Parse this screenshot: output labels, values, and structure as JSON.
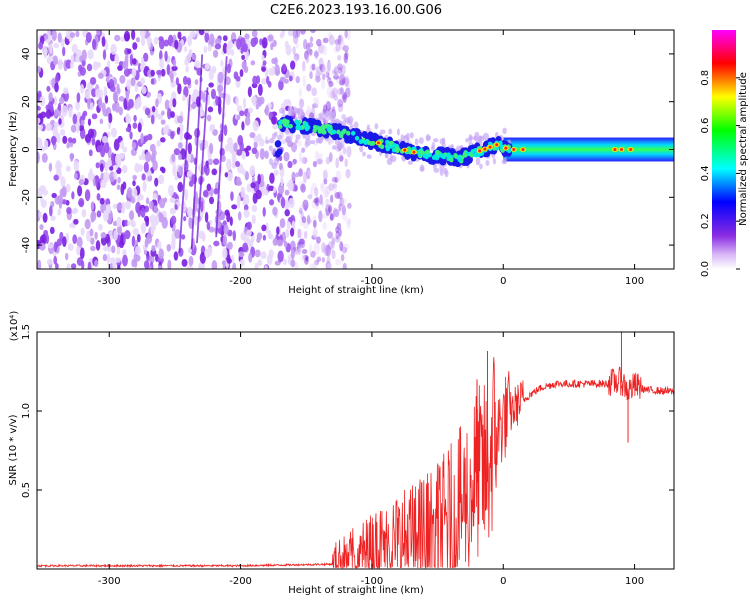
{
  "figure_title": "C2E6.2023.193.16.00.G06",
  "colors": {
    "snr_line": "#ee2222",
    "spectrogram_noise": "#8a3cf0",
    "track": "#00e0c0"
  },
  "chart_data": [
    {
      "type": "heatmap",
      "title": "C2E6.2023.193.16.00.G06",
      "xlabel": "Height of straight line (km)",
      "ylabel": "Frequency (Hz)",
      "xlim": [
        -355,
        130
      ],
      "ylim": [
        -50,
        50
      ],
      "x_ticks": [
        -300,
        -200,
        -100,
        0,
        100
      ],
      "y_ticks": [
        -40,
        -20,
        0,
        20,
        40
      ],
      "colorbar": {
        "label": "Normalized spectral amplitude",
        "range": [
          0,
          1
        ],
        "ticks": [
          "0.0",
          "0.2",
          "0.4",
          "0.6",
          "0.8"
        ],
        "colormap": "rainbow (white-violet-blue-cyan-green-yellow-red-magenta)"
      },
      "noise_region_x": [
        -355,
        -125
      ],
      "track": {
        "x": [
          -170,
          -150,
          -130,
          -110,
          -90,
          -70,
          -55,
          -45,
          -35,
          -25,
          -15,
          -5,
          5,
          20,
          60,
          100,
          130
        ],
        "frequency": [
          11,
          10,
          8,
          5,
          2,
          -1,
          -2,
          -3,
          -4,
          -2,
          0,
          2,
          0,
          0,
          0,
          0,
          0
        ]
      }
    },
    {
      "type": "line",
      "xlabel": "Height of straight line (km)",
      "ylabel": "SNR (10 * v/v)",
      "y_multiplier": "(x10⁴)",
      "xlim": [
        -355,
        130
      ],
      "ylim": [
        0,
        1.5
      ],
      "x_ticks": [
        -300,
        -200,
        -100,
        0
      ],
      "y_ticks": [
        "0.5",
        "1.0",
        "1.5"
      ],
      "series": [
        {
          "x": [
            -355,
            -300,
            -200,
            -130,
            -110,
            -90,
            -70,
            -50,
            -40,
            -30,
            -20,
            -12,
            -8,
            -5,
            0,
            10,
            20,
            30,
            40,
            60,
            80,
            90,
            95,
            100,
            110,
            130
          ],
          "y": [
            0.02,
            0.02,
            0.02,
            0.03,
            0.07,
            0.13,
            0.15,
            0.2,
            0.27,
            0.37,
            0.55,
            0.55,
            0.75,
            0.82,
            0.92,
            1.02,
            1.1,
            1.15,
            1.17,
            1.17,
            1.17,
            1.18,
            1.12,
            1.15,
            1.13,
            1.12
          ],
          "spike_peaks": [
            {
              "x": -12,
              "y": 1.38
            },
            {
              "x": -20,
              "y": 1.2
            },
            {
              "x": 90,
              "y": 1.5
            },
            {
              "x": 95,
              "y": 0.8
            }
          ]
        }
      ]
    }
  ]
}
